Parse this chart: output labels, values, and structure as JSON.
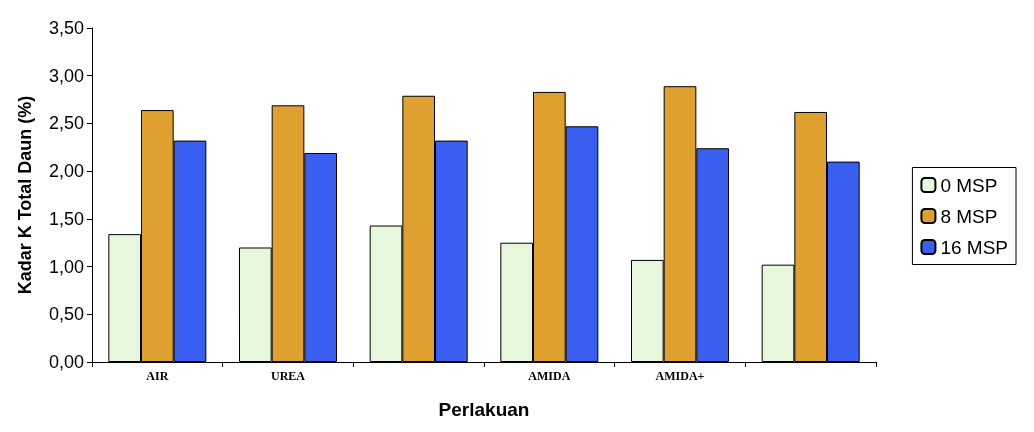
{
  "chart_data": {
    "type": "bar",
    "xlabel": "Perlakuan",
    "ylabel": "Kadar K Total Daun (%)",
    "categories": [
      "AIR",
      "UREA",
      null,
      "AMIDA",
      "AMIDA+",
      null
    ],
    "series": [
      {
        "name": "0 MSP",
        "color": "#e6f7dc",
        "values": [
          1.34,
          1.2,
          1.43,
          1.25,
          1.07,
          1.02
        ]
      },
      {
        "name": "8 MSP",
        "color": "#e0a030",
        "values": [
          2.64,
          2.69,
          2.79,
          2.83,
          2.89,
          2.62
        ]
      },
      {
        "name": "16 MSP",
        "color": "#3a5ff0",
        "values": [
          2.32,
          2.19,
          2.32,
          2.47,
          2.24,
          2.1
        ]
      }
    ],
    "ylim": [
      0,
      3.5
    ],
    "yticks": [
      {
        "value": 0,
        "label": "0,00"
      },
      {
        "value": 0.5,
        "label": "0,50"
      },
      {
        "value": 1,
        "label": "1,00"
      },
      {
        "value": 1.5,
        "label": "1,50"
      },
      {
        "value": 2,
        "label": "2,00"
      },
      {
        "value": 2.5,
        "label": "2,50"
      },
      {
        "value": 3,
        "label": "3,00"
      },
      {
        "value": 3.5,
        "label": "3,50"
      }
    ],
    "grid": false,
    "legend": "right"
  }
}
